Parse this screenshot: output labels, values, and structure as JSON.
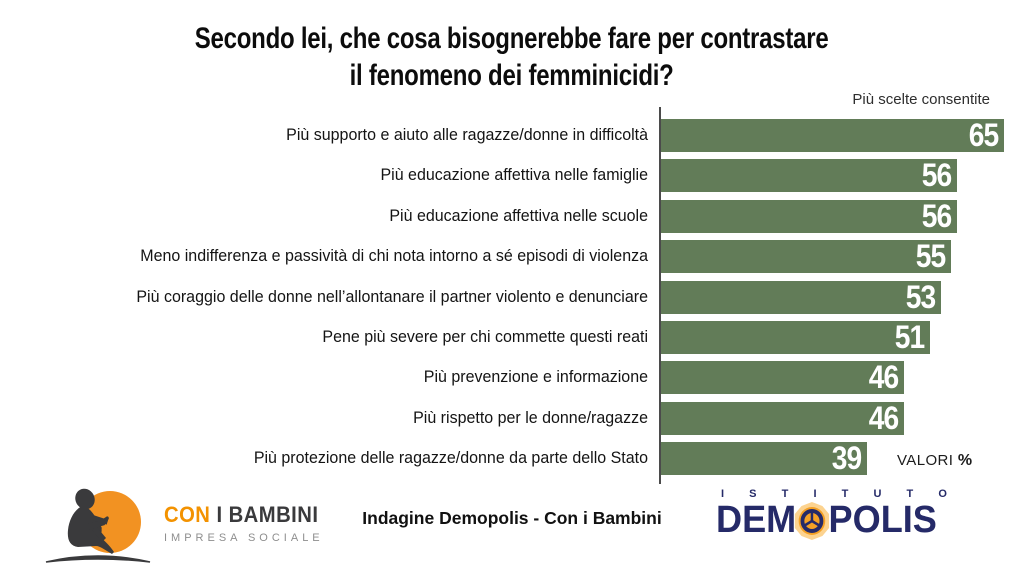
{
  "header": {
    "title_line1": "Secondo lei, che cosa bisognerebbe fare per contrastare",
    "title_line2": "il fenomeno dei femminicidi?",
    "note": "Più scelte consentite"
  },
  "chart_data": {
    "type": "bar",
    "orientation": "horizontal",
    "title": "Secondo lei, che cosa bisognerebbe fare per contrastare il fenomeno dei femminicidi?",
    "subtitle": "Più scelte consentite",
    "unit_label": "VALORI",
    "unit_symbol": "%",
    "xlim": [
      0,
      68
    ],
    "grid": false,
    "legend": false,
    "bar_color": "#627C58",
    "value_label_color": "#FFFFFF",
    "categories": [
      "Più supporto e aiuto alle ragazze/donne in difficoltà",
      "Più educazione affettiva nelle famiglie",
      "Più educazione affettiva nelle scuole",
      "Meno indifferenza e passività di chi nota intorno a sé episodi di violenza",
      "Più coraggio delle donne nell’allontanare il partner violento e denunciare",
      "Pene più severe per chi commette questi reati",
      "Più prevenzione e informazione",
      "Più rispetto per le donne/ragazze",
      "Più protezione delle ragazze/donne da parte dello Stato"
    ],
    "values": [
      65,
      56,
      56,
      55,
      53,
      51,
      46,
      46,
      39
    ]
  },
  "footer": {
    "source": "Indagine Demopolis - Con i Bambini",
    "con_i_bambini": {
      "name_part1": "CON",
      "name_part2": " I BAMBINI",
      "subtitle": "IMPRESA SOCIALE",
      "accent_color": "#F39200",
      "text_color": "#3A3A3C"
    },
    "demopolis": {
      "top": "ISTITUTO",
      "name_part1": "DEM",
      "name_part2": "POLIS",
      "brand_color": "#252A68",
      "sun_color": "#F5A125"
    }
  }
}
